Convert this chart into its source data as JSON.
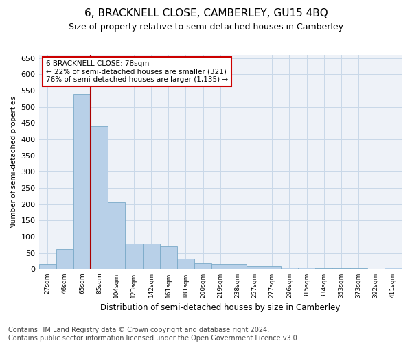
{
  "title": "6, BRACKNELL CLOSE, CAMBERLEY, GU15 4BQ",
  "subtitle": "Size of property relative to semi-detached houses in Camberley",
  "xlabel": "Distribution of semi-detached houses by size in Camberley",
  "ylabel": "Number of semi-detached properties",
  "categories": [
    "27sqm",
    "46sqm",
    "65sqm",
    "85sqm",
    "104sqm",
    "123sqm",
    "142sqm",
    "161sqm",
    "181sqm",
    "200sqm",
    "219sqm",
    "238sqm",
    "257sqm",
    "277sqm",
    "296sqm",
    "315sqm",
    "334sqm",
    "353sqm",
    "373sqm",
    "392sqm",
    "411sqm"
  ],
  "values": [
    15,
    62,
    540,
    440,
    205,
    80,
    80,
    70,
    33,
    17,
    15,
    15,
    9,
    10,
    5,
    5,
    4,
    3,
    2,
    0,
    5
  ],
  "bar_color": "#b8d0e8",
  "bar_edge_color": "#7aaac8",
  "property_line_x": 3.0,
  "annotation_line1": "6 BRACKNELL CLOSE: 78sqm",
  "annotation_line2": "← 22% of semi-detached houses are smaller (321)",
  "annotation_line3": "76% of semi-detached houses are larger (1,135) →",
  "annotation_box_color": "#ffffff",
  "annotation_box_edge_color": "#cc0000",
  "line_color": "#aa0000",
  "grid_color": "#c8d8e8",
  "background_color": "#eef2f8",
  "ylim": [
    0,
    660
  ],
  "yticks": [
    0,
    50,
    100,
    150,
    200,
    250,
    300,
    350,
    400,
    450,
    500,
    550,
    600,
    650
  ],
  "footer_line1": "Contains HM Land Registry data © Crown copyright and database right 2024.",
  "footer_line2": "Contains public sector information licensed under the Open Government Licence v3.0.",
  "title_fontsize": 11,
  "subtitle_fontsize": 9,
  "footer_fontsize": 7
}
